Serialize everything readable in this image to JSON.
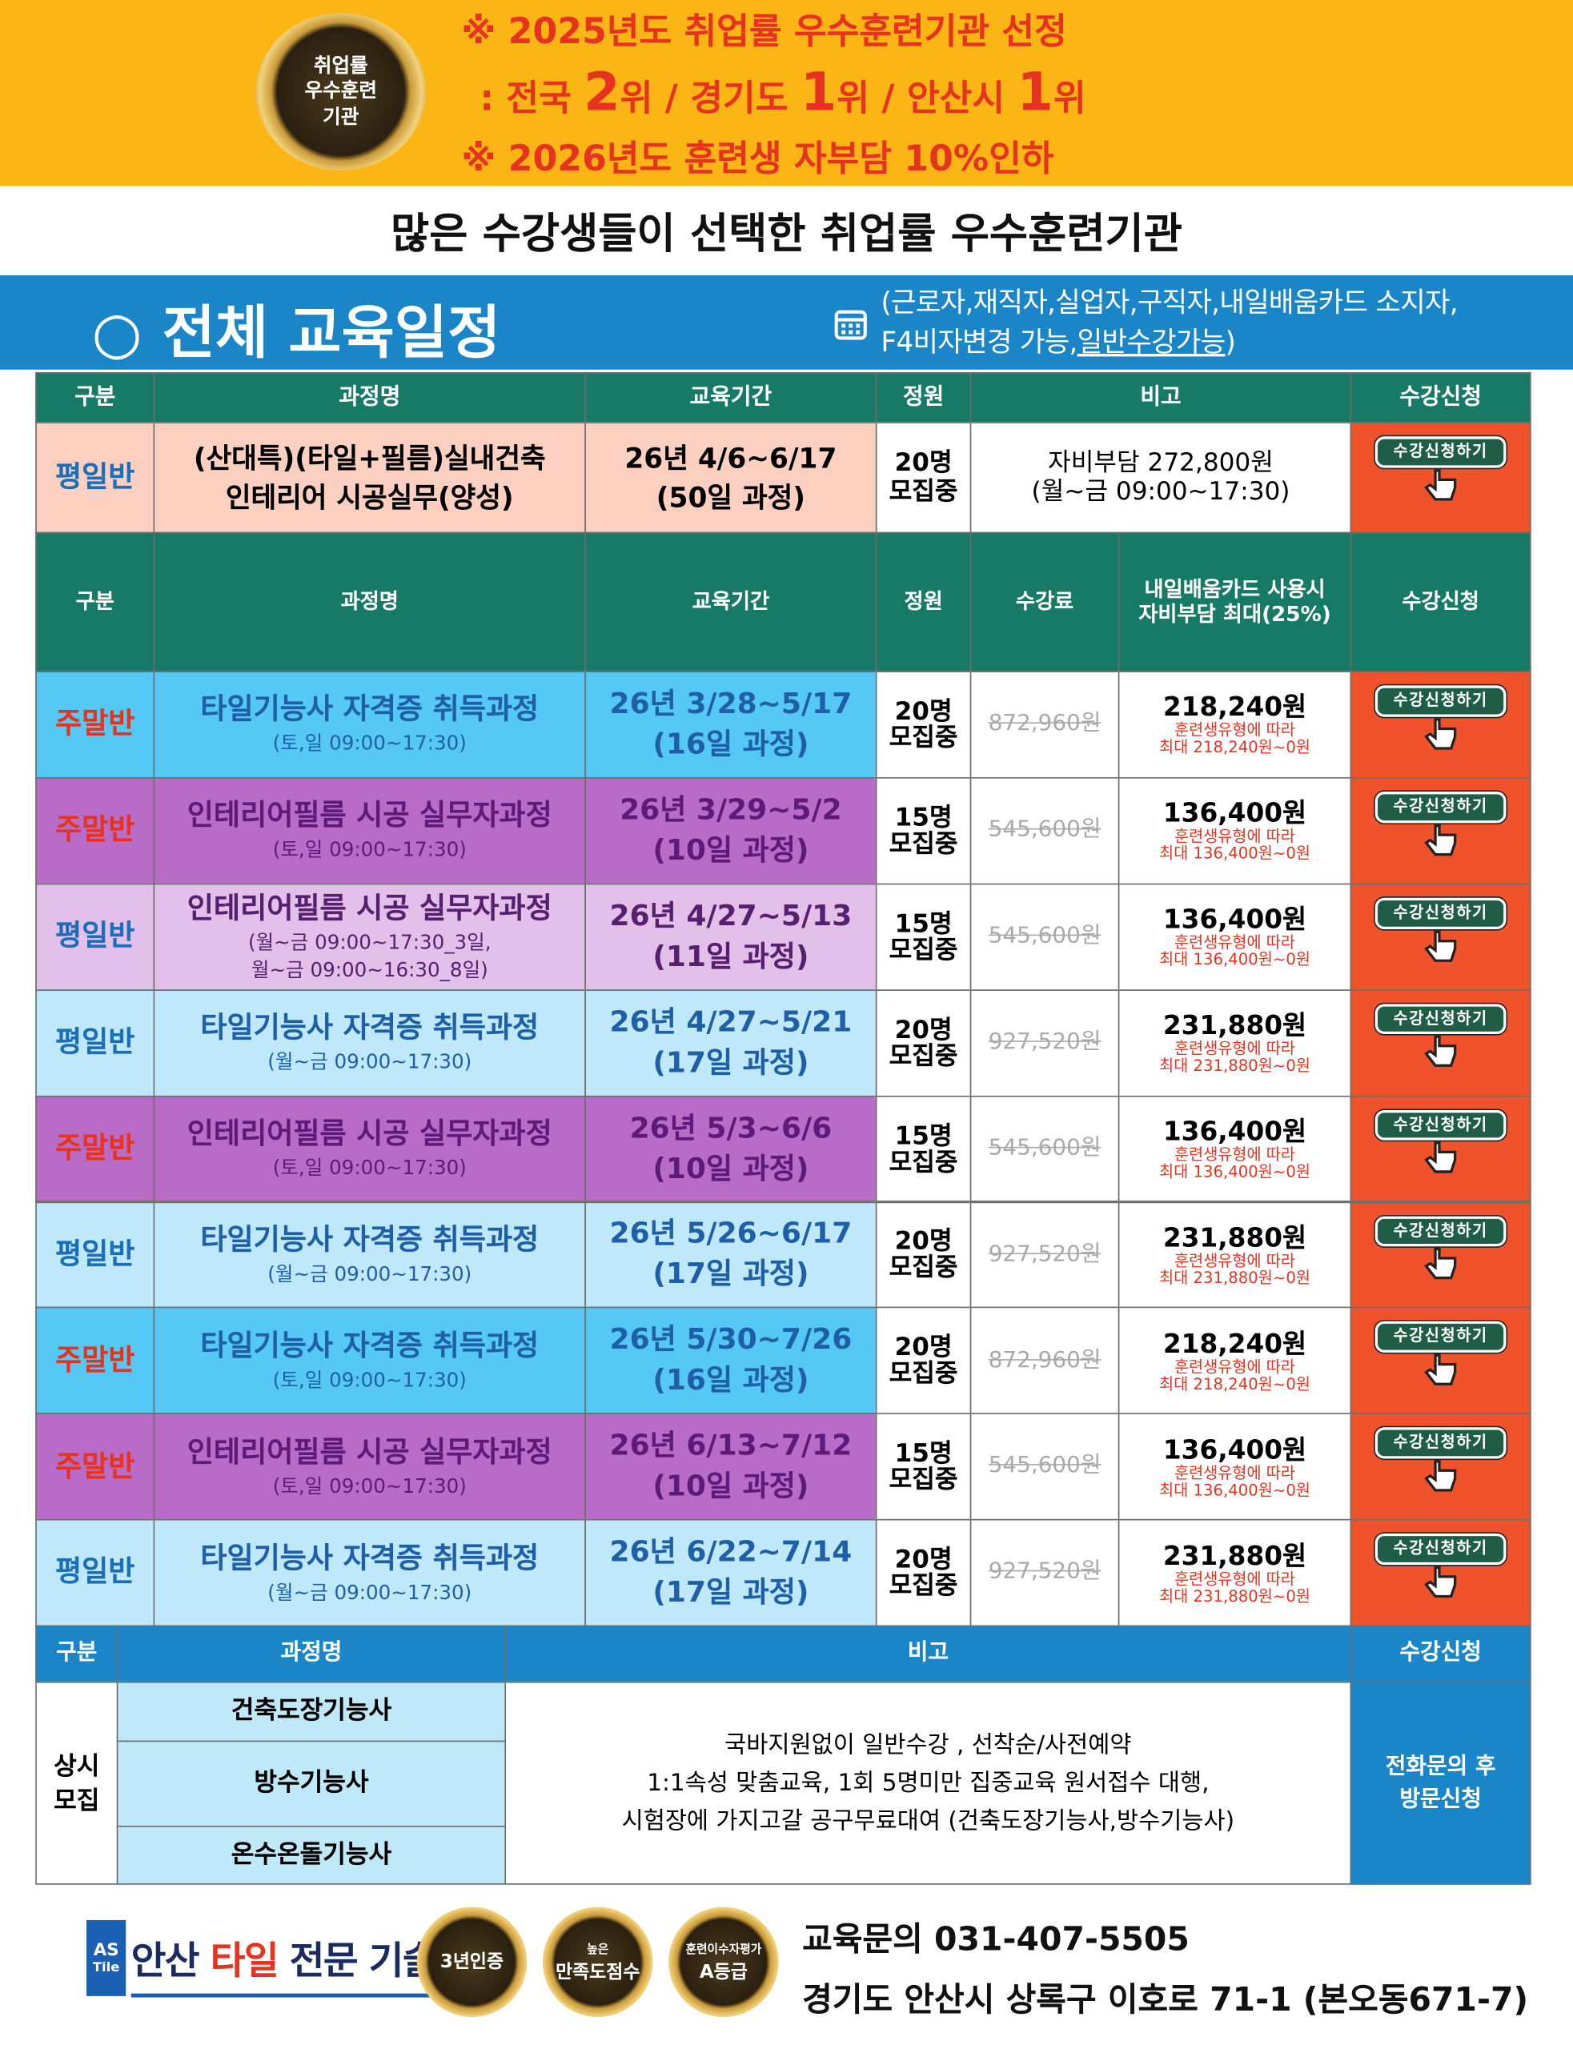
{
  "banner": {
    "badge": [
      "취업률",
      "우수훈련",
      "기관"
    ],
    "line1": "※ 2025년도 취업률 우수훈련기관 선정",
    "line2": [
      ": 전국 ",
      "2",
      "위 / 경기도 ",
      "1",
      "위 / 안산시 ",
      "1",
      "위"
    ],
    "line3": "※ 2026년도 훈련생 자부담 10%인하"
  },
  "subtitle": "많은 수강생들이 선택한 취업률 우수훈련기관",
  "section": {
    "title": "○ 전체 교육일정",
    "note1": "(근로자,재직자,실업자,구직자,내일배움카드 소지자,",
    "note2": [
      "F4비자변경 가능,",
      "일반수강가능",
      ")"
    ]
  },
  "button": "수강신청하기",
  "table1": {
    "headers": [
      "구분",
      "과정명",
      "교육기간",
      "정원",
      "비고",
      "수강신청"
    ],
    "row": {
      "type": "평일반",
      "course": [
        "(산대특)(타일+필름)실내건축",
        "인테리어 시공실무(양성)"
      ],
      "period": [
        "26년 4/6~6/17",
        "(50일 과정)"
      ],
      "capacity": "20명",
      "status": "모집중",
      "note": [
        "자비부담 272,800원",
        "(월~금 09:00~17:30)"
      ]
    }
  },
  "table2": {
    "headers": [
      "구분",
      "과정명",
      "교육기간",
      "정원",
      "수강료",
      [
        "내일배움카드 사용시",
        "자비부담 최대(25%)"
      ],
      "수강신청"
    ],
    "rows": [
      {
        "type": "주말반",
        "course": "타일기능사 자격증 취득과정",
        "schedule": [
          "(토,일 09:00~17:30)"
        ],
        "period": [
          "26년 3/28~5/17",
          "(16일 과정)"
        ],
        "capacity": "20명",
        "status": "모집중",
        "fee": "872,960원",
        "self_pay": "218,240원",
        "note": [
          "훈련생유형에 따라",
          "최대 218,240원~0원"
        ]
      },
      {
        "type": "주말반",
        "course": "인테리어필름 시공 실무자과정",
        "schedule": [
          "(토,일 09:00~17:30)"
        ],
        "period": [
          "26년 3/29~5/2",
          "(10일 과정)"
        ],
        "capacity": "15명",
        "status": "모집중",
        "fee": "545,600원",
        "self_pay": "136,400원",
        "note": [
          "훈련생유형에 따라",
          "최대 136,400원~0원"
        ]
      },
      {
        "type": "평일반",
        "course": "인테리어필름 시공 실무자과정",
        "schedule": [
          "(월~금 09:00~17:30_3일,",
          "월~금 09:00~16:30_8일)"
        ],
        "period": [
          "26년 4/27~5/13",
          "(11일 과정)"
        ],
        "capacity": "15명",
        "status": "모집중",
        "fee": "545,600원",
        "self_pay": "136,400원",
        "note": [
          "훈련생유형에 따라",
          "최대 136,400원~0원"
        ]
      },
      {
        "type": "평일반",
        "course": "타일기능사 자격증 취득과정",
        "schedule": [
          "(월~금 09:00~17:30)"
        ],
        "period": [
          "26년 4/27~5/21",
          "(17일 과정)"
        ],
        "capacity": "20명",
        "status": "모집중",
        "fee": "927,520원",
        "self_pay": "231,880원",
        "note": [
          "훈련생유형에 따라",
          "최대 231,880원~0원"
        ]
      },
      {
        "type": "주말반",
        "course": "인테리어필름 시공 실무자과정",
        "schedule": [
          "(토,일 09:00~17:30)"
        ],
        "period": [
          "26년 5/3~6/6",
          "(10일 과정)"
        ],
        "capacity": "15명",
        "status": "모집중",
        "fee": "545,600원",
        "self_pay": "136,400원",
        "note": [
          "훈련생유형에 따라",
          "최대 136,400원~0원"
        ]
      },
      {
        "type": "평일반",
        "course": "타일기능사 자격증 취득과정",
        "schedule": [
          "(월~금 09:00~17:30)"
        ],
        "period": [
          "26년 5/26~6/17",
          "(17일 과정)"
        ],
        "capacity": "20명",
        "status": "모집중",
        "fee": "927,520원",
        "self_pay": "231,880원",
        "note": [
          "훈련생유형에 따라",
          "최대 231,880원~0원"
        ]
      },
      {
        "type": "주말반",
        "course": "타일기능사 자격증 취득과정",
        "schedule": [
          "(토,일 09:00~17:30)"
        ],
        "period": [
          "26년 5/30~7/26",
          "(16일 과정)"
        ],
        "capacity": "20명",
        "status": "모집중",
        "fee": "872,960원",
        "self_pay": "218,240원",
        "note": [
          "훈련생유형에 따라",
          "최대 218,240원~0원"
        ]
      },
      {
        "type": "주말반",
        "course": "인테리어필름 시공 실무자과정",
        "schedule": [
          "(토,일 09:00~17:30)"
        ],
        "period": [
          "26년 6/13~7/12",
          "(10일 과정)"
        ],
        "capacity": "15명",
        "status": "모집중",
        "fee": "545,600원",
        "self_pay": "136,400원",
        "note": [
          "훈련생유형에 따라",
          "최대 136,400원~0원"
        ]
      },
      {
        "type": "평일반",
        "course": "타일기능사 자격증 취득과정",
        "schedule": [
          "(월~금 09:00~17:30)"
        ],
        "period": [
          "26년 6/22~7/14",
          "(17일 과정)"
        ],
        "capacity": "20명",
        "status": "모집중",
        "fee": "927,520원",
        "self_pay": "231,880원",
        "note": [
          "훈련생유형에 따라",
          "최대 231,880원~0원"
        ]
      }
    ]
  },
  "table3": {
    "headers": [
      "구분",
      "과정명",
      "비고",
      "수강신청"
    ],
    "type": [
      "상시",
      "모집"
    ],
    "courses": [
      "건축도장기능사",
      "방수기능사",
      "온수온돌기능사"
    ],
    "note": [
      "국바지원없이 일반수강 , 선착순/사전예약",
      "1:1속성 맞춤교육, 1회 5명미만 집중교육 원서접수 대행,",
      "시험장에 가지고갈 공구무료대여 (건축도장기능사,방수기능사)"
    ],
    "apply": [
      "전화문의 후",
      "방문신청"
    ]
  },
  "footer": {
    "logo_mark": [
      "AS",
      "Tile"
    ],
    "logo": [
      "안산 ",
      "타일",
      " 전문 기술학원"
    ],
    "badges": [
      [
        "3년인증"
      ],
      [
        "높은",
        "만족도점수"
      ],
      [
        "훈련이수자평가",
        "A등급"
      ]
    ],
    "contact": "교육문의 031-407-5505",
    "address": "경기도 안산시 상록구 이호로 71-1 (본오동671-7)"
  }
}
